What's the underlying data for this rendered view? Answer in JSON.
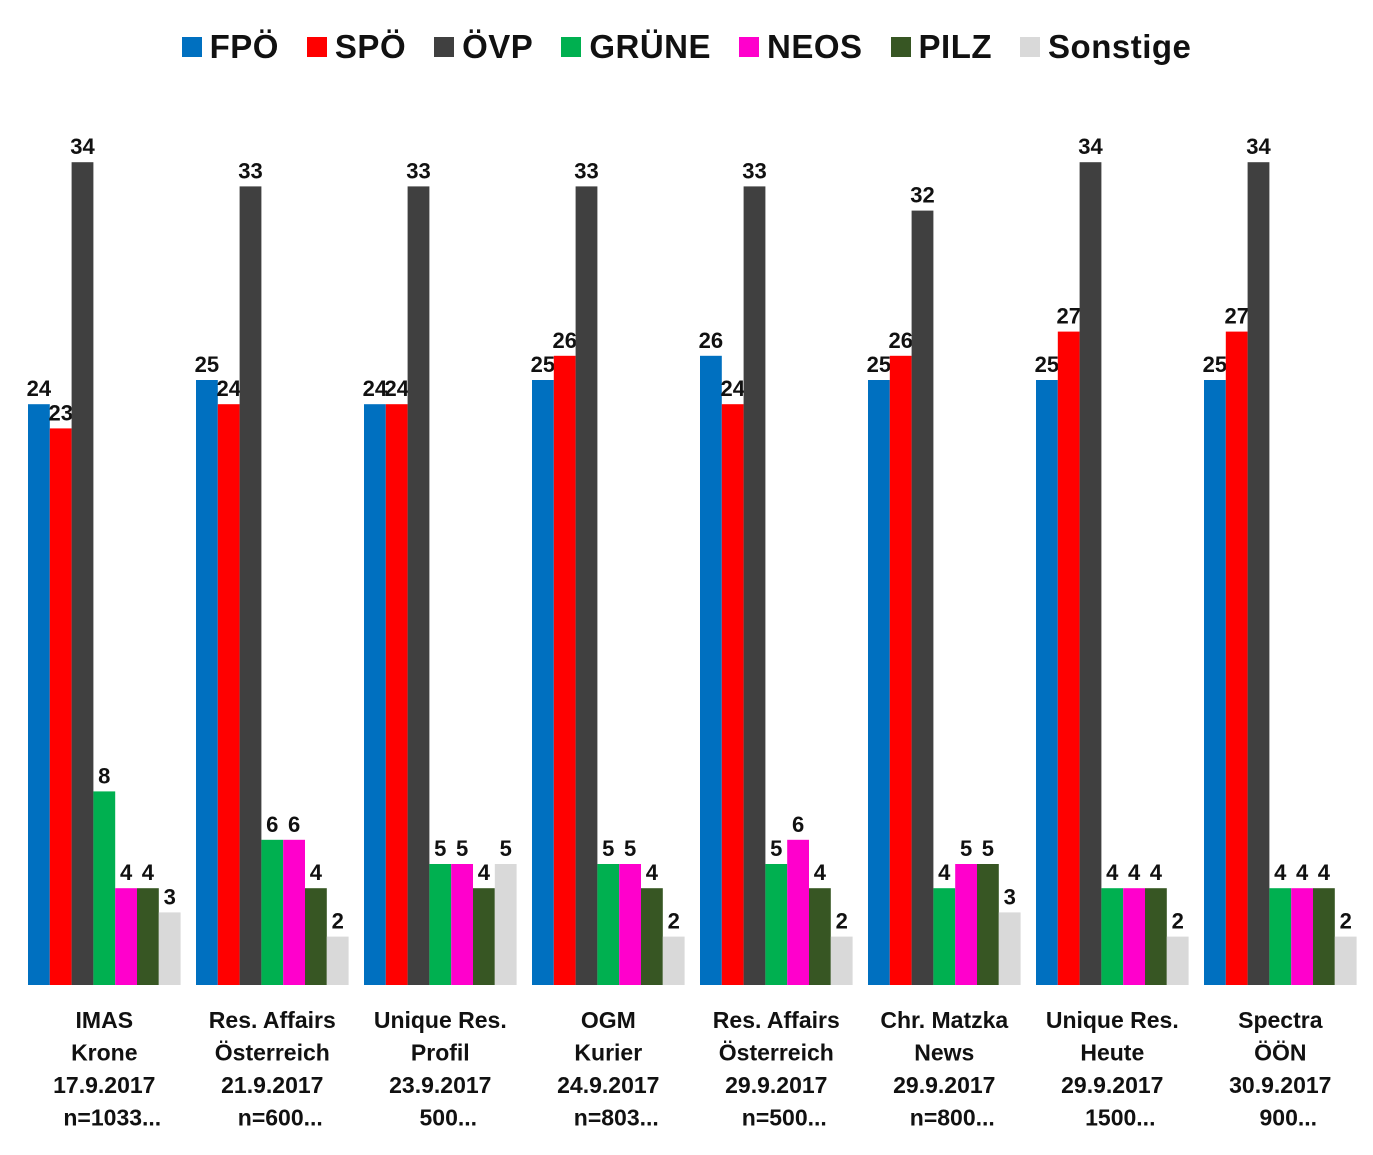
{
  "chart_data": {
    "type": "bar",
    "legend_position": "top",
    "grid": false,
    "ylim": [
      0,
      34
    ],
    "series": [
      {
        "name": "FPÖ",
        "color": "#0070C0",
        "values": [
          24,
          25,
          24,
          25,
          26,
          25,
          25,
          25
        ]
      },
      {
        "name": "SPÖ",
        "color": "#FF0000",
        "values": [
          23,
          24,
          24,
          26,
          24,
          26,
          27,
          27
        ]
      },
      {
        "name": "ÖVP",
        "color": "#404040",
        "values": [
          34,
          33,
          33,
          33,
          33,
          32,
          34,
          34
        ]
      },
      {
        "name": "GRÜNE",
        "color": "#00B050",
        "values": [
          8,
          6,
          5,
          5,
          5,
          4,
          4,
          4
        ]
      },
      {
        "name": "NEOS",
        "color": "#FF00CC",
        "values": [
          4,
          6,
          5,
          5,
          6,
          5,
          4,
          4
        ]
      },
      {
        "name": "PILZ",
        "color": "#375623",
        "values": [
          4,
          4,
          4,
          4,
          4,
          5,
          4,
          4
        ]
      },
      {
        "name": "Sonstige",
        "color": "#D9D9D9",
        "values": [
          3,
          2,
          5,
          2,
          2,
          3,
          2,
          2
        ]
      }
    ],
    "categories": [
      [
        "IMAS",
        "Krone",
        "17.9.2017",
        "n=1033..."
      ],
      [
        "Res. Affairs",
        "Österreich",
        "21.9.2017",
        "n=600..."
      ],
      [
        "Unique Res.",
        "Profil",
        "23.9.2017",
        "500..."
      ],
      [
        "OGM",
        "Kurier",
        "24.9.2017",
        "n=803..."
      ],
      [
        "Res. Affairs",
        "Österreich",
        "29.9.2017",
        "n=500..."
      ],
      [
        "Chr. Matzka",
        "News",
        "29.9.2017",
        "n=800..."
      ],
      [
        "Unique Res.",
        "Heute",
        "29.9.2017",
        "1500..."
      ],
      [
        "Spectra",
        "ÖÖN",
        "30.9.2017",
        "900..."
      ]
    ]
  }
}
